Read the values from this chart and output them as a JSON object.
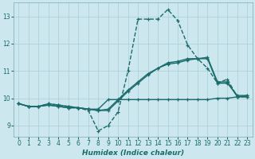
{
  "xlabel": "Humidex (Indice chaleur)",
  "bg_color": "#cce8ee",
  "line_color": "#1a6b6b",
  "grid_color": "#aacdd6",
  "yticks": [
    9,
    10,
    11,
    12,
    13
  ],
  "xtick_labels": [
    "0",
    "1",
    "2",
    "3",
    "4",
    "5",
    "6",
    "7",
    "8",
    "9",
    "10",
    "11",
    "12",
    "13",
    "14",
    "15",
    "16",
    "17",
    "18",
    "19",
    "20",
    "21",
    "22",
    "23"
  ],
  "xlim": [
    -0.5,
    23.5
  ],
  "ylim": [
    8.6,
    13.5
  ],
  "series": [
    [
      9.8,
      9.7,
      9.7,
      9.8,
      9.75,
      9.7,
      9.65,
      9.55,
      8.8,
      9.0,
      9.5,
      11.0,
      12.9,
      12.9,
      12.9,
      13.25,
      12.85,
      11.95,
      11.45,
      11.1,
      10.55,
      10.7,
      10.05,
      10.05
    ],
    [
      9.8,
      9.7,
      9.7,
      9.75,
      9.7,
      9.65,
      9.65,
      9.6,
      9.55,
      9.55,
      9.9,
      10.25,
      10.55,
      10.85,
      11.1,
      11.25,
      11.3,
      11.4,
      11.45,
      11.5,
      10.6,
      10.6,
      10.05,
      10.05
    ],
    [
      9.8,
      9.7,
      9.7,
      9.75,
      9.7,
      9.65,
      9.65,
      9.6,
      9.55,
      9.6,
      9.95,
      10.3,
      10.6,
      10.9,
      11.1,
      11.3,
      11.35,
      11.45,
      11.45,
      11.45,
      10.55,
      10.55,
      10.1,
      10.1
    ],
    [
      9.8,
      9.7,
      9.7,
      9.8,
      9.75,
      9.7,
      9.65,
      9.6,
      9.6,
      9.95,
      9.95,
      9.95,
      9.95,
      9.95,
      9.95,
      9.95,
      9.95,
      9.95,
      9.95,
      9.95,
      10.0,
      10.0,
      10.05,
      10.1
    ]
  ],
  "linestyles": [
    "--",
    "-",
    "-",
    "-"
  ],
  "linewidths": [
    1.0,
    1.0,
    1.0,
    1.0
  ]
}
